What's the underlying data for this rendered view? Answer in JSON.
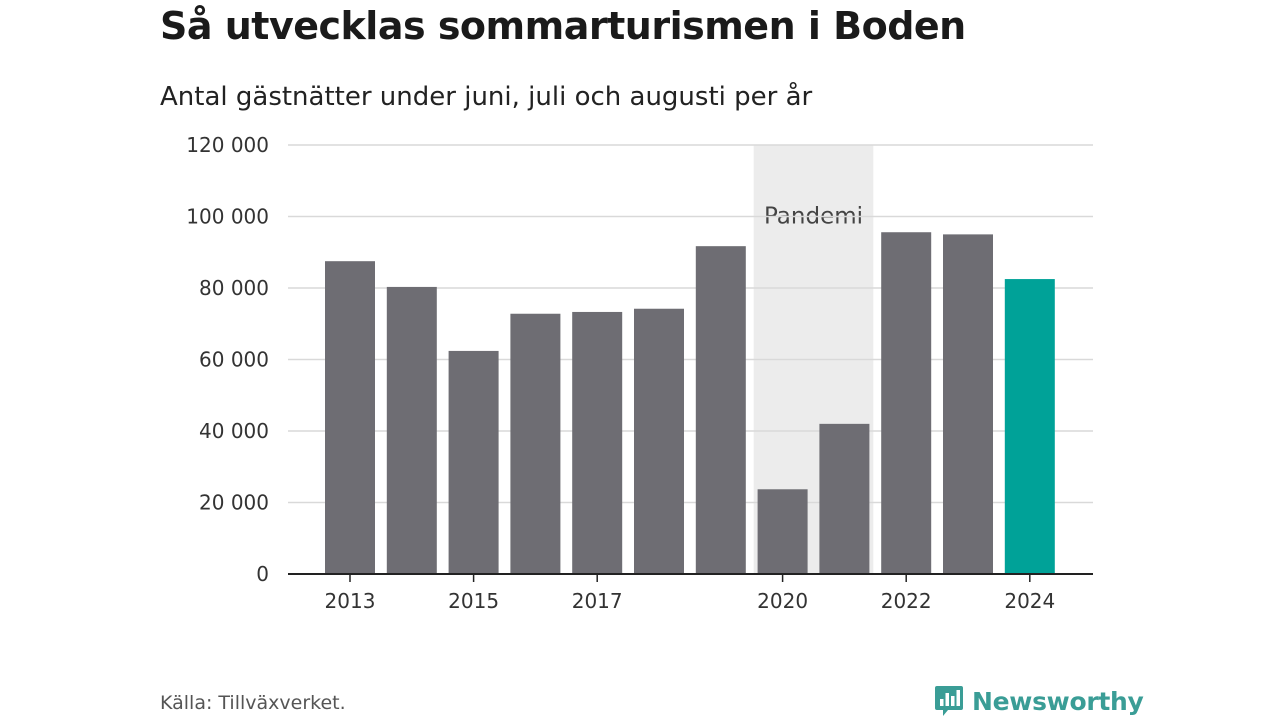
{
  "header": {
    "title": "Så utvecklas sommarturismen i Boden",
    "subtitle": "Antal gästnätter under juni, juli och augusti per år"
  },
  "footer": {
    "source": "Källa: Tillväxverket.",
    "brand": "Newsworthy"
  },
  "colors": {
    "bar": "#6e6d73",
    "highlight": "#00a298",
    "band": "#ececec",
    "grid": "#d9d9d9",
    "axis": "#222222",
    "brand": "#3a9d96"
  },
  "chart_data": {
    "type": "bar",
    "title": "Så utvecklas sommarturismen i Boden",
    "subtitle": "Antal gästnätter under juni, juli och augusti per år",
    "categories": [
      2013,
      2014,
      2015,
      2016,
      2017,
      2018,
      2019,
      2020,
      2021,
      2022,
      2023,
      2024
    ],
    "values": [
      87500,
      80300,
      62400,
      72800,
      73300,
      74200,
      91700,
      23700,
      42000,
      95600,
      95000,
      82500
    ],
    "highlight_category": 2024,
    "x_tick_labels": [
      "2013",
      "2015",
      "2017",
      "2020",
      "2022",
      "2024"
    ],
    "y_tick_labels": [
      "0",
      "20 000",
      "40 000",
      "60 000",
      "80 000",
      "100 000",
      "120 000"
    ],
    "ylim": [
      0,
      120000
    ],
    "grid": true,
    "annotations": [
      {
        "type": "band",
        "from": 2020,
        "to": 2021,
        "label": "Pandemi"
      }
    ]
  }
}
